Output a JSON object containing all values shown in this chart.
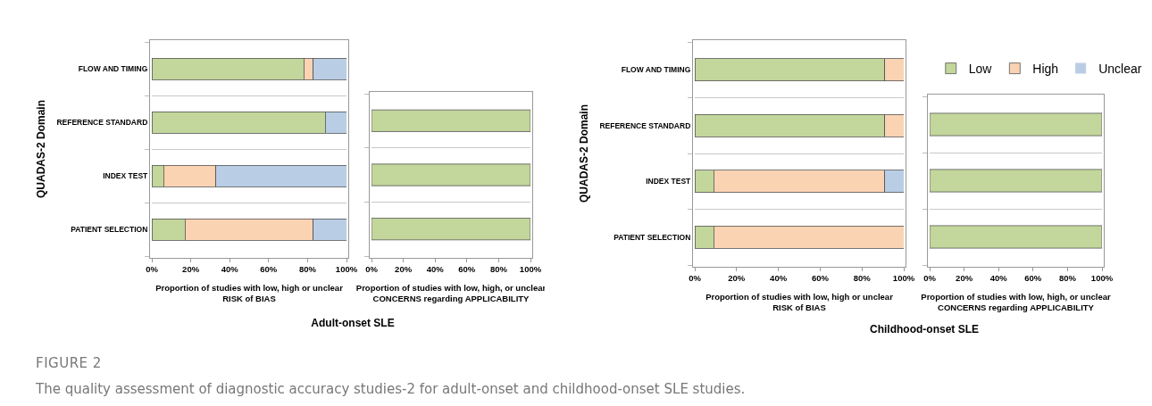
{
  "chart_data": [
    {
      "type": "bar",
      "orientation": "horizontal",
      "stacked": true,
      "ylabel": "QUADAS-2 Domain",
      "xlabel": "Proportion of studies with low, high or unclear\nRISK of BIAS",
      "categories": [
        "FLOW AND TIMING",
        "REFERENCE STANDARD",
        "INDEX TEST",
        "PATIENT SELECTION"
      ],
      "series": [
        {
          "color": "#c3d69b",
          "values": [
            78,
            89,
            6,
            17
          ]
        },
        {
          "color": "#fad3b3",
          "values": [
            5,
            0,
            27,
            66
          ]
        },
        {
          "color": "#b9cde5",
          "values": [
            17,
            11,
            67,
            17
          ]
        }
      ],
      "xlim": [
        0,
        100
      ],
      "xticks": [
        {
          "value": 0,
          "label": "0%"
        },
        {
          "value": 20,
          "label": "20%"
        },
        {
          "value": 40,
          "label": "40%"
        },
        {
          "value": 60,
          "label": "60%"
        },
        {
          "value": 80,
          "label": "80%"
        },
        {
          "value": 100,
          "label": "100%"
        }
      ],
      "grid": "y",
      "legend": false,
      "annotations": [
        "Adult-onset SLE",
        "FIGURE 2",
        "The quality assessment of diagnostic accuracy studies-2 for adult-onset and childhood-onset SLE studies."
      ]
    },
    {
      "type": "bar",
      "orientation": "horizontal",
      "stacked": true,
      "xlabel": "Proportion of studies with low, high, or unclear\nCONCERNS regarding APPLICABILITY",
      "categories": [
        null,
        null,
        null
      ],
      "series": [
        {
          "color": "#c3d69b",
          "values": [
            100,
            100,
            100
          ]
        }
      ],
      "xlim": [
        0,
        100
      ],
      "xticks": [
        {
          "value": 0,
          "label": "0%"
        },
        {
          "value": 20,
          "label": "20%"
        },
        {
          "value": 40,
          "label": "40%"
        },
        {
          "value": 60,
          "label": "60%"
        },
        {
          "value": 80,
          "label": "80%"
        },
        {
          "value": 100,
          "label": "100%"
        }
      ],
      "grid": "y",
      "legend": false,
      "tick_labels": "x"
    },
    {
      "type": "bar",
      "orientation": "horizontal",
      "stacked": true,
      "ylabel": "QUADAS-2 Domain",
      "xlabel": "Proportion of studies with low, high or unclear\nRISK of BIAS",
      "categories": [
        "FLOW AND TIMING",
        "REFERENCE STANDARD",
        "INDEX TEST",
        "PATIENT SELECTION"
      ],
      "series": [
        {
          "name": "Low",
          "color": "#c3d69b",
          "values": [
            91,
            91,
            9,
            9
          ]
        },
        {
          "name": "High",
          "color": "#fad3b3",
          "values": [
            9,
            9,
            82,
            91
          ]
        },
        {
          "name": "Unclear",
          "color": "#b9cde5",
          "values": [
            0,
            0,
            9,
            0
          ]
        }
      ],
      "xlim": [
        0,
        100
      ],
      "xticks": [
        {
          "value": 0,
          "label": "0%"
        },
        {
          "value": 20,
          "label": "20%"
        },
        {
          "value": 40,
          "label": "40%"
        },
        {
          "value": 60,
          "label": "60%"
        },
        {
          "value": 80,
          "label": "80%"
        },
        {
          "value": 100,
          "label": "100%"
        }
      ],
      "grid": "y",
      "legend": "top right",
      "annotations": [
        "Childhood-onset SLE"
      ]
    },
    {
      "type": "bar",
      "orientation": "horizontal",
      "stacked": true,
      "xlabel": "Proportion of studies with low, high, or unclear\nCONCERNS regarding APPLICABILITY",
      "categories": [
        null,
        null,
        null
      ],
      "series": [
        {
          "color": "#c3d69b",
          "values": [
            100,
            100,
            100
          ]
        }
      ],
      "xlim": [
        0,
        100
      ],
      "xticks": [
        {
          "value": 0,
          "label": "0%"
        },
        {
          "value": 20,
          "label": "20%"
        },
        {
          "value": 40,
          "label": "40%"
        },
        {
          "value": 60,
          "label": "60%"
        },
        {
          "value": 80,
          "label": "80%"
        },
        {
          "value": 100,
          "label": "100%"
        }
      ],
      "grid": "y",
      "legend": false,
      "tick_labels": "x"
    }
  ]
}
